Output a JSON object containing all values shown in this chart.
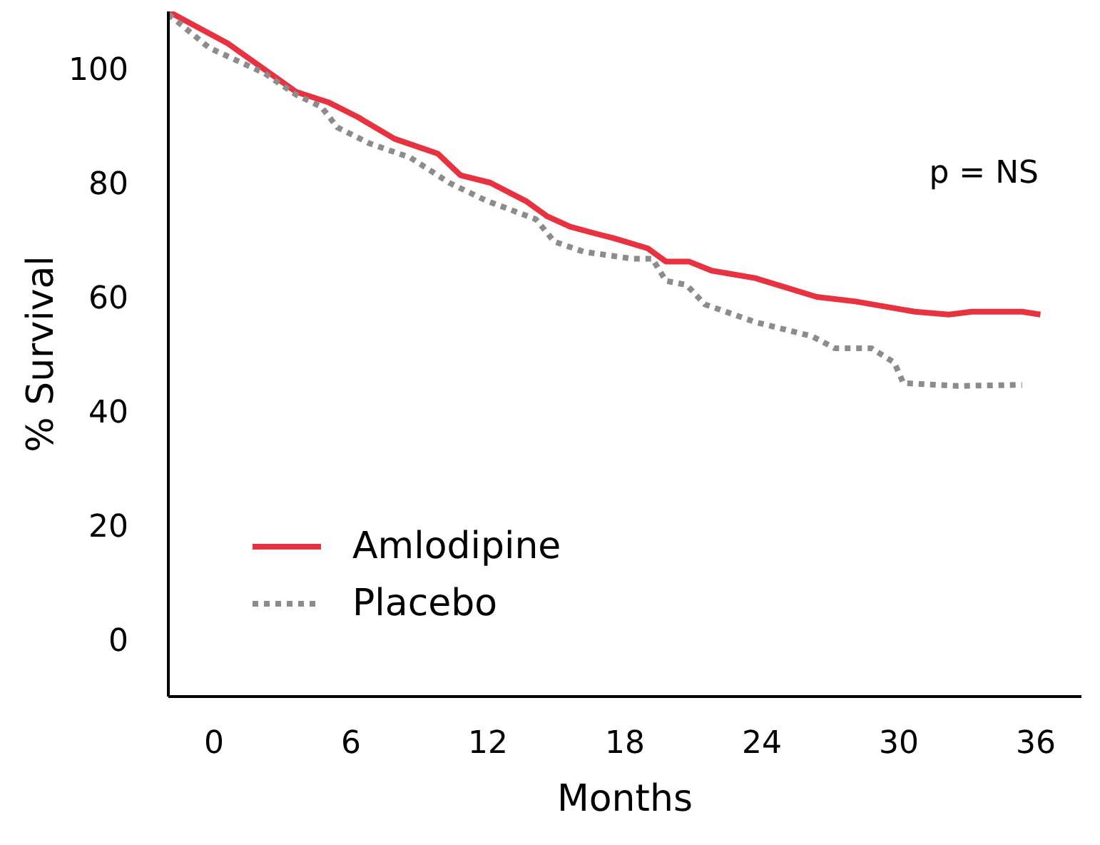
{
  "chart_data": {
    "type": "line",
    "xlabel": "Months",
    "ylabel": "% Survival",
    "xlim": [
      -2,
      38
    ],
    "xticks": [
      0,
      6,
      12,
      18,
      24,
      30,
      36
    ],
    "ylim": [
      -10,
      110
    ],
    "yticks": [
      0,
      20,
      40,
      60,
      80,
      100
    ],
    "grid": false,
    "legend": "bottom left",
    "annotations": [
      "p = NS"
    ],
    "series": [
      {
        "name": "Amlodipine",
        "color": "#e8323f",
        "line_style": "solid",
        "x": [
          -2.0,
          0.6,
          3.6,
          5.0,
          6.3,
          7.9,
          9.8,
          10.8,
          12.1,
          13.7,
          14.6,
          15.6,
          16.8,
          17.5,
          19.0,
          19.8,
          20.8,
          21.8,
          23.7,
          26.4,
          28.1,
          30.7,
          32.2,
          33.2,
          35.4,
          36.2
        ],
        "values": [
          110,
          104.4,
          95.9,
          94.1,
          91.5,
          87.7,
          85.1,
          81.3,
          80.0,
          76.7,
          74.1,
          72.3,
          71.0,
          70.3,
          68.5,
          66.2,
          66.2,
          64.6,
          63.3,
          60.0,
          59.2,
          57.4,
          56.9,
          57.4,
          57.4,
          56.9
        ]
      },
      {
        "name": "Placebo",
        "color": "#8c8c8c",
        "line_style": "dotted",
        "x": [
          -2.0,
          -0.2,
          2.2,
          3.6,
          4.7,
          5.4,
          6.8,
          8.6,
          10.3,
          11.9,
          14.1,
          14.9,
          16.2,
          18.3,
          19.2,
          19.8,
          20.7,
          21.5,
          23.7,
          26.2,
          27.2,
          28.8,
          29.8,
          30.2,
          32.6,
          35.4
        ],
        "values": [
          109.5,
          103.6,
          99.2,
          95.4,
          93.3,
          89.7,
          86.9,
          84.4,
          80.0,
          76.9,
          73.6,
          69.7,
          67.9,
          66.7,
          66.7,
          62.8,
          62.1,
          58.7,
          55.6,
          53.1,
          51.0,
          51.0,
          48.5,
          44.9,
          44.4,
          44.6
        ]
      }
    ]
  }
}
